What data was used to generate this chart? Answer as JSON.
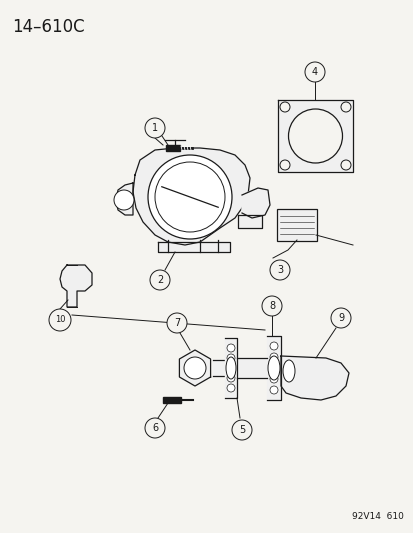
{
  "title": "14–610C",
  "footer": "92V14  610",
  "bg_color": "#f5f4f0",
  "line_color": "#1a1a1a",
  "fill_color": "#ffffff",
  "fill_light": "#f0f0f0",
  "fig_width": 4.14,
  "fig_height": 5.33,
  "dpi": 100
}
